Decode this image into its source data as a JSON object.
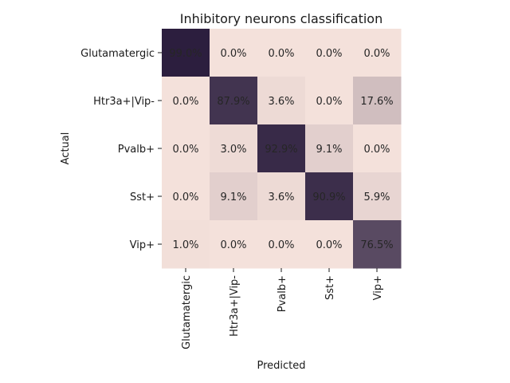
{
  "chart_data": {
    "type": "heatmap",
    "title": "Inhibitory neurons classification",
    "xlabel": "Predicted",
    "ylabel": "Actual",
    "x_categories": [
      "Glutamatergic",
      "Htr3a+|Vip-",
      "Pvalb+",
      "Sst+",
      "Vip+"
    ],
    "y_categories": [
      "Glutamatergic",
      "Htr3a+|Vip-",
      "Pvalb+",
      "Sst+",
      "Vip+"
    ],
    "values": [
      [
        99.0,
        0.0,
        0.0,
        0.0,
        0.0
      ],
      [
        0.0,
        87.9,
        3.6,
        0.0,
        17.6
      ],
      [
        0.0,
        3.0,
        92.9,
        9.1,
        0.0
      ],
      [
        0.0,
        9.1,
        3.6,
        90.9,
        5.9
      ],
      [
        1.0,
        0.0,
        0.0,
        0.0,
        76.5
      ]
    ],
    "value_unit": "%",
    "colorbar": false,
    "colors": {
      "low": "#f4e1db",
      "high": "#2c1e3e"
    }
  }
}
